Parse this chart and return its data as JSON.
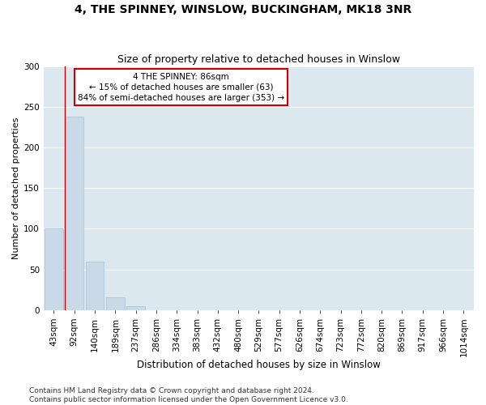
{
  "title1": "4, THE SPINNEY, WINSLOW, BUCKINGHAM, MK18 3NR",
  "title2": "Size of property relative to detached houses in Winslow",
  "xlabel": "Distribution of detached houses by size in Winslow",
  "ylabel": "Number of detached properties",
  "bar_labels": [
    "43sqm",
    "92sqm",
    "140sqm",
    "189sqm",
    "237sqm",
    "286sqm",
    "334sqm",
    "383sqm",
    "432sqm",
    "480sqm",
    "529sqm",
    "577sqm",
    "626sqm",
    "674sqm",
    "723sqm",
    "772sqm",
    "820sqm",
    "869sqm",
    "917sqm",
    "966sqm",
    "1014sqm"
  ],
  "bar_values": [
    100,
    238,
    60,
    16,
    5,
    0,
    0,
    0,
    0,
    0,
    0,
    0,
    0,
    0,
    0,
    0,
    0,
    0,
    0,
    0,
    0
  ],
  "bar_color": "#c9d9e8",
  "bar_edge_color": "#a8c0d4",
  "background_color": "#dce8f0",
  "grid_color": "#ffffff",
  "annotation_text": "4 THE SPINNEY: 86sqm\n← 15% of detached houses are smaller (63)\n84% of semi-detached houses are larger (353) →",
  "annotation_box_color": "#ffffff",
  "annotation_box_edge": "#cc0000",
  "vline_color": "#cc0000",
  "ylim": [
    0,
    300
  ],
  "yticks": [
    0,
    50,
    100,
    150,
    200,
    250,
    300
  ],
  "footer1": "Contains HM Land Registry data © Crown copyright and database right 2024.",
  "footer2": "Contains public sector information licensed under the Open Government Licence v3.0.",
  "title1_fontsize": 10,
  "title2_fontsize": 9,
  "annot_fontsize": 7.5,
  "ylabel_fontsize": 8,
  "xlabel_fontsize": 8.5,
  "footer_fontsize": 6.5,
  "tick_fontsize": 7.5
}
